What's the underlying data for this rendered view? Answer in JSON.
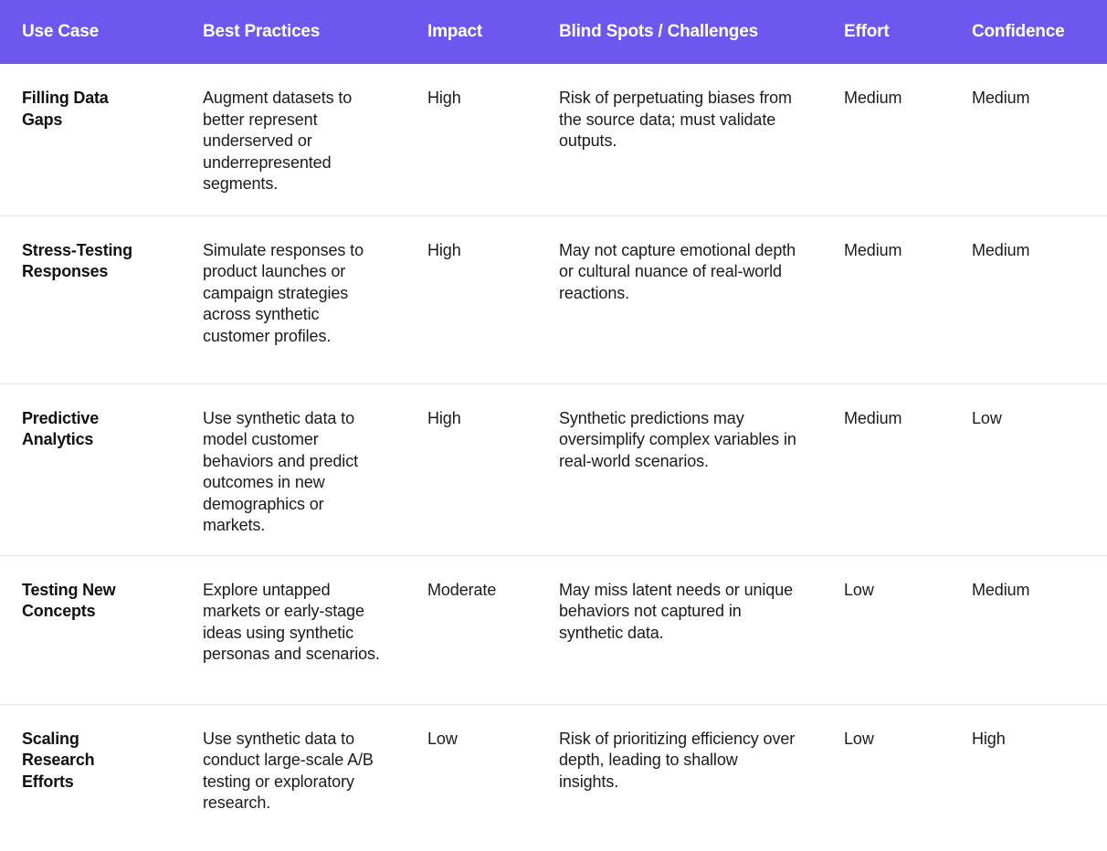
{
  "theme": {
    "header_bg": "#6E57EE",
    "header_text": "#FFFFFF",
    "body_bg": "#FFFFFF",
    "body_text": "#1B1B1B",
    "divider": "#E6E6E6"
  },
  "table": {
    "columns": [
      {
        "key": "use_case",
        "label": "Use Case"
      },
      {
        "key": "best_practices",
        "label": "Best Practices"
      },
      {
        "key": "impact",
        "label": "Impact"
      },
      {
        "key": "blind_spots",
        "label": "Blind Spots / Challenges"
      },
      {
        "key": "effort",
        "label": "Effort"
      },
      {
        "key": "confidence",
        "label": "Confidence"
      }
    ],
    "rows": [
      {
        "use_case": "Filling Data Gaps",
        "best_practices": "Augment datasets to better represent underserved or underrepresented segments.",
        "impact": "High",
        "blind_spots": "Risk of perpetuating biases from the source data; must validate outputs.",
        "effort": "Medium",
        "confidence": "Medium"
      },
      {
        "use_case": "Stress-Testing Responses",
        "best_practices": "Simulate responses to product launches or campaign strategies across synthetic customer profiles.",
        "impact": "High",
        "blind_spots": "May not capture emotional depth or cultural nuance of real-world reactions.",
        "effort": "Medium",
        "confidence": "Medium"
      },
      {
        "use_case": "Predictive Analytics",
        "best_practices": "Use synthetic data to model customer behaviors and predict outcomes in new demographics or markets.",
        "impact": "High",
        "blind_spots": "Synthetic predictions may oversimplify complex variables in real-world scenarios.",
        "effort": "Medium",
        "confidence": "Low"
      },
      {
        "use_case": "Testing New Concepts",
        "best_practices": "Explore untapped markets or early-stage ideas using synthetic personas and scenarios.",
        "impact": "Moderate",
        "blind_spots": "May miss latent needs or unique behaviors not captured in synthetic data.",
        "effort": "Low",
        "confidence": "Medium"
      },
      {
        "use_case": "Scaling Research Efforts",
        "best_practices": "Use synthetic data to conduct large-scale A/B testing or exploratory research.",
        "impact": "Low",
        "blind_spots": "Risk of prioritizing efficiency over depth, leading to shallow insights.",
        "effort": "Low",
        "confidence": "High"
      }
    ]
  }
}
